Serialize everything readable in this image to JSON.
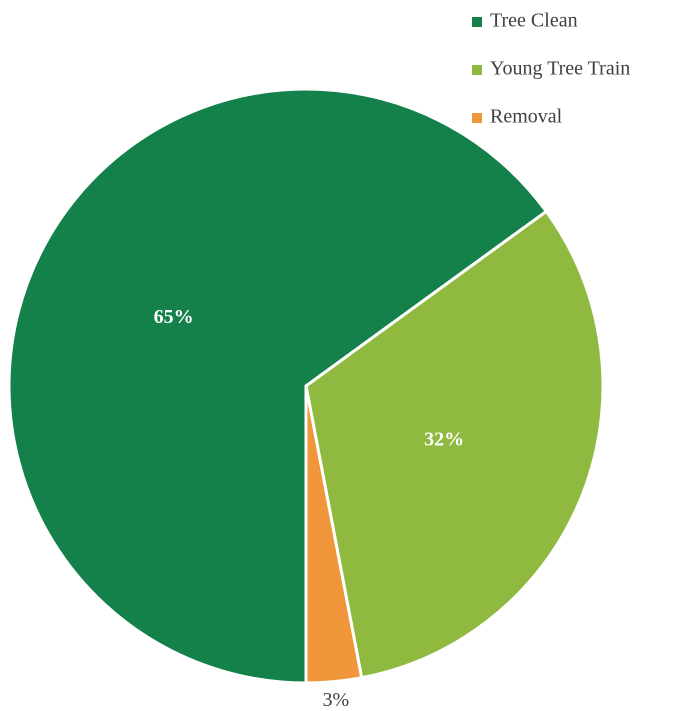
{
  "chart_data": {
    "type": "pie",
    "categories": [
      "Tree Clean",
      "Young Tree Train",
      "Removal"
    ],
    "values": [
      65,
      32,
      3
    ],
    "value_labels": [
      "65%",
      "32%",
      "3%"
    ],
    "colors": [
      "#138149",
      "#8fba3f",
      "#f0963a"
    ],
    "legend": "top-right"
  }
}
